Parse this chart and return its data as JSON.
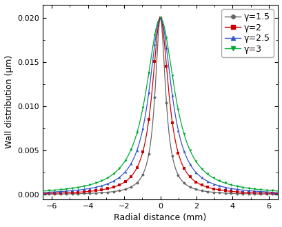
{
  "title": "",
  "xlabel": "Radial distance (mm)",
  "ylabel": "Wall distribution (μm)",
  "xlim": [
    -6.5,
    6.5
  ],
  "ylim": [
    -0.0005,
    0.0215
  ],
  "yticks": [
    0.0,
    0.005,
    0.01,
    0.015,
    0.02
  ],
  "xticks": [
    -6,
    -4,
    -2,
    0,
    2,
    4,
    6
  ],
  "series": [
    {
      "gamma": 1.5,
      "sigma": 0.35,
      "color": "#666666",
      "marker": "o",
      "linestyle": "-"
    },
    {
      "gamma": 2.0,
      "sigma": 0.55,
      "color": "#cc0000",
      "marker": "s",
      "linestyle": "-"
    },
    {
      "gamma": 2.5,
      "sigma": 0.75,
      "color": "#3355cc",
      "marker": "^",
      "linestyle": "-"
    },
    {
      "gamma": 3.0,
      "sigma": 0.95,
      "color": "#00aa33",
      "marker": "v",
      "linestyle": "-"
    }
  ],
  "peak": 0.02,
  "x_range": [
    -6.5,
    6.5
  ],
  "n_points": 600,
  "marker_step": 15,
  "legend_labels": [
    "γ=1.5",
    "γ=2",
    "γ=2.5",
    "γ=3"
  ],
  "background_color": "#ffffff",
  "fontsize": 9,
  "legend_fontsize": 9
}
